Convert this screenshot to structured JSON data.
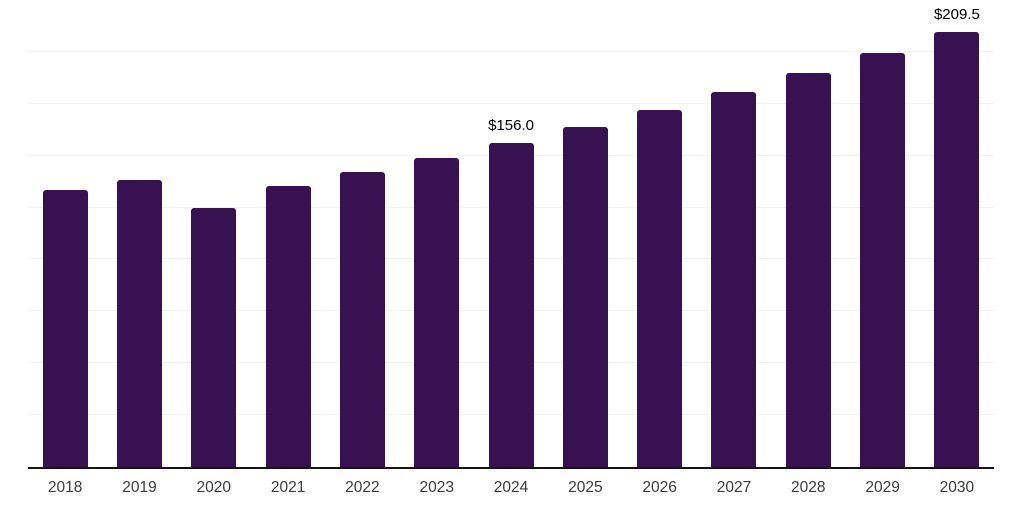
{
  "chart_data": {
    "type": "bar",
    "title": "",
    "xlabel": "",
    "ylabel": "",
    "categories": [
      "2018",
      "2019",
      "2020",
      "2021",
      "2022",
      "2023",
      "2024",
      "2025",
      "2026",
      "2027",
      "2028",
      "2029",
      "2030"
    ],
    "values": [
      133.3,
      138.4,
      125.0,
      135.3,
      142.0,
      149.0,
      156.0,
      163.9,
      172.1,
      180.8,
      189.9,
      199.5,
      209.5
    ],
    "value_labels": {
      "2024": "$156.0",
      "2030": "$209.5"
    },
    "unit_prefix": "$",
    "ylim": [
      0,
      225
    ],
    "grid_step": 25,
    "gridlines": "horizontal",
    "legend": false,
    "colors": {
      "bar": "#371151",
      "axis": "#141414",
      "gridline": "#f2f2f2",
      "value_label": "#000000",
      "tick_label": "#3d3d3d",
      "background": "#ffffff"
    }
  }
}
